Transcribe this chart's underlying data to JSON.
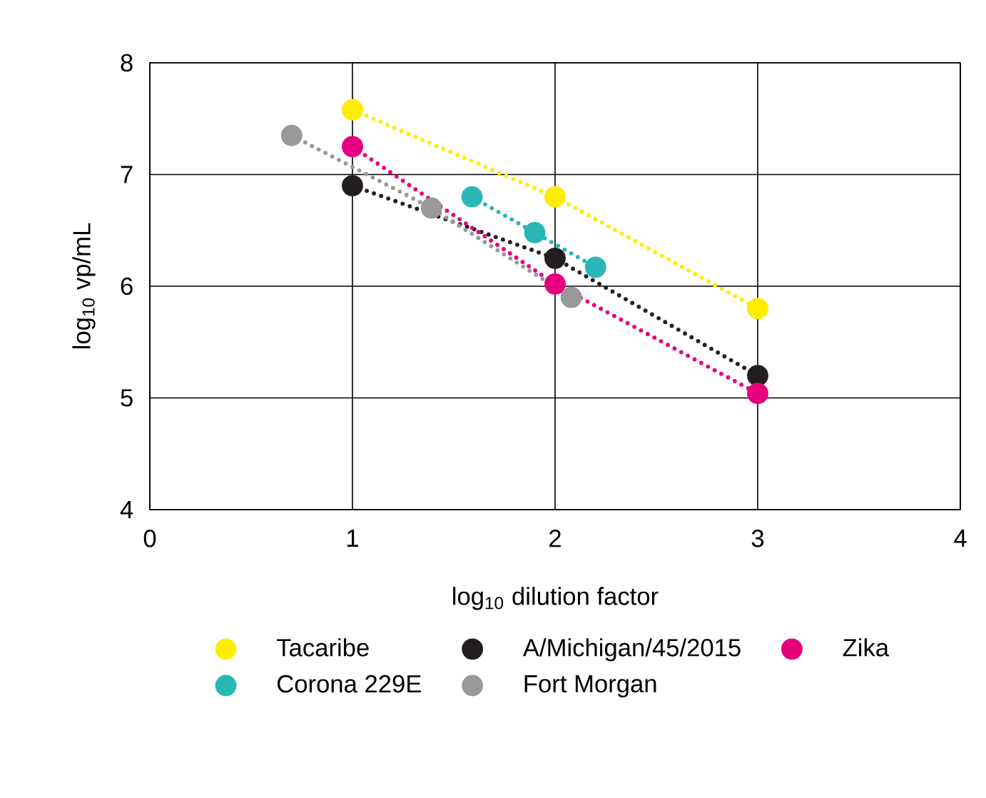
{
  "chart_data": {
    "type": "line",
    "xlabel": "log$_{10}$ dilution factor",
    "ylabel": "log$_{10}$ vp/mL",
    "xlim": [
      0,
      4
    ],
    "ylim": [
      4,
      8
    ],
    "xticks": [
      0,
      1,
      2,
      3,
      4
    ],
    "yticks": [
      4,
      5,
      6,
      7,
      8
    ],
    "grid": true,
    "legend": "bottom",
    "marker": "circle",
    "line_style": "dotted",
    "series": [
      {
        "name": "Tacaribe",
        "color": "#ffed00",
        "x": [
          1,
          2,
          3
        ],
        "values": [
          7.58,
          6.8,
          5.8
        ]
      },
      {
        "name": "A/Michigan/45/2015",
        "color": "#231f20",
        "x": [
          1,
          2,
          3
        ],
        "values": [
          6.9,
          6.25,
          5.2
        ]
      },
      {
        "name": "Zika",
        "color": "#e6007e",
        "x": [
          1,
          2,
          3
        ],
        "values": [
          7.25,
          6.02,
          5.04
        ]
      },
      {
        "name": "Corona 229E",
        "color": "#2ab7b5",
        "x": [
          1.59,
          1.9,
          2.2
        ],
        "values": [
          6.8,
          6.48,
          6.17
        ]
      },
      {
        "name": "Fort Morgan",
        "color": "#999999",
        "x": [
          0.7,
          1.39,
          2.08
        ],
        "values": [
          7.35,
          6.7,
          5.9
        ]
      }
    ]
  }
}
